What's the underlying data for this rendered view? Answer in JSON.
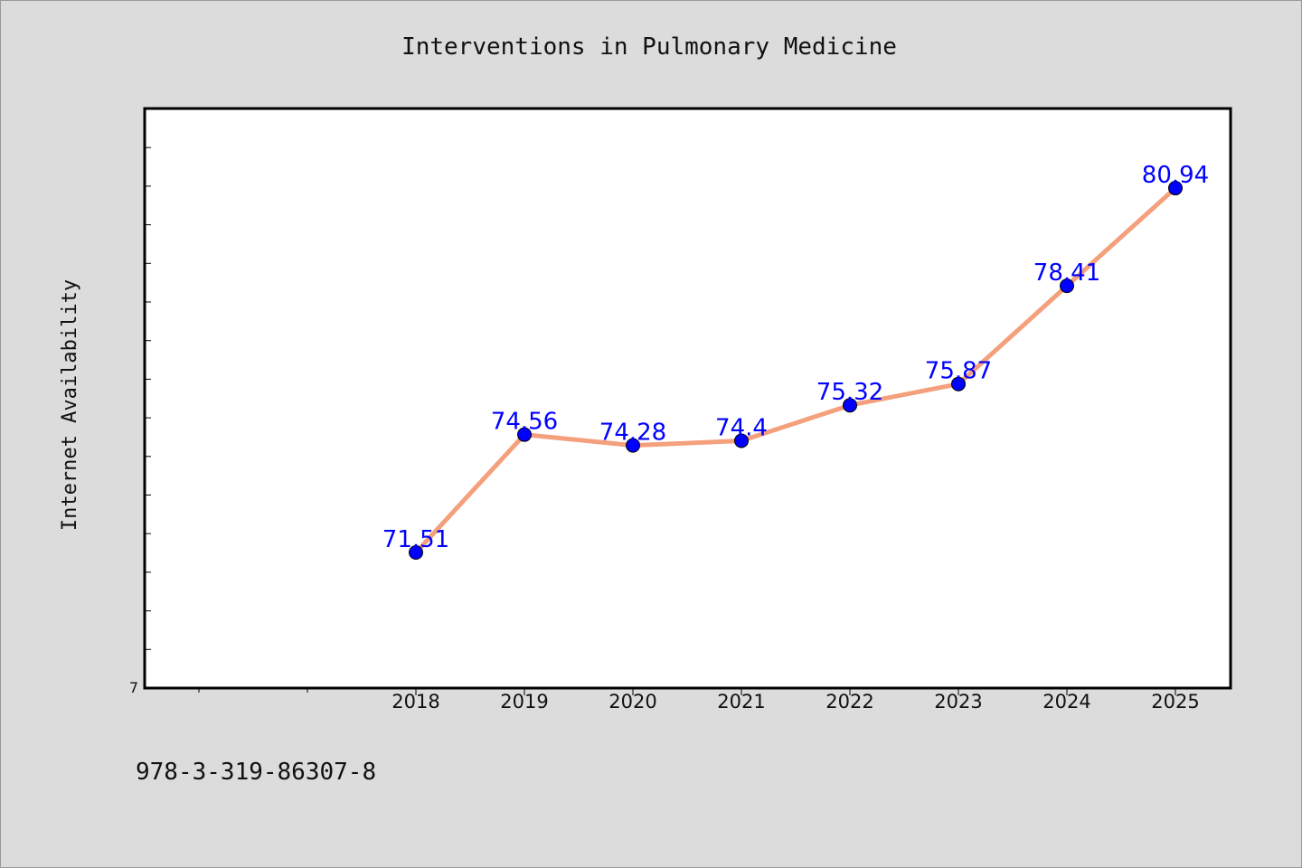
{
  "chart_data": {
    "type": "line",
    "title": "Interventions in Pulmonary Medicine",
    "xlabel": "",
    "ylabel": "Internet Availability",
    "categories": [
      "2018",
      "2019",
      "2020",
      "2021",
      "2022",
      "2023",
      "2024",
      "2025"
    ],
    "values": [
      71.51,
      74.56,
      74.28,
      74.4,
      75.32,
      75.87,
      78.41,
      80.94
    ],
    "data_labels": [
      "71.51",
      "74.56",
      "74.28",
      "74.4",
      "75.32",
      "75.87",
      "78.41",
      "80.94"
    ],
    "ylim": [
      68,
      83
    ],
    "ytick_label": "7",
    "line_color": "#f4a07c",
    "marker_color": "#0000ff",
    "label_color": "#0000ff",
    "grid": false,
    "legend": "none"
  },
  "footer": {
    "isbn": "978-3-319-86307-8"
  }
}
